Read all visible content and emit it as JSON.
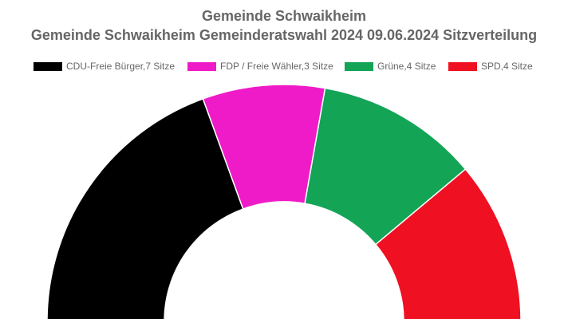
{
  "chart_data": {
    "type": "pie",
    "variant": "semicircle-donut",
    "title": "Gemeinde Schwaikheim",
    "subtitle": "Gemeinde Schwaikheim Gemeinderatswahl 2024 09.06.2024 Sitzverteilung",
    "legend_position": "top",
    "series": [
      {
        "name": "CDU-Freie Bürger",
        "label": "CDU-Freie Bürger,7 Sitze",
        "value": 7,
        "color": "#000000"
      },
      {
        "name": "FDP / Freie Wähler",
        "label": "FDP / Freie Wähler,3 Sitze",
        "value": 3,
        "color": "#f01bc8"
      },
      {
        "name": "Grüne",
        "label": "Grüne,4 Sitze",
        "value": 4,
        "color": "#13a456"
      },
      {
        "name": "SPD",
        "label": "SPD,4 Sitze",
        "value": 4,
        "color": "#ef1022"
      }
    ]
  }
}
